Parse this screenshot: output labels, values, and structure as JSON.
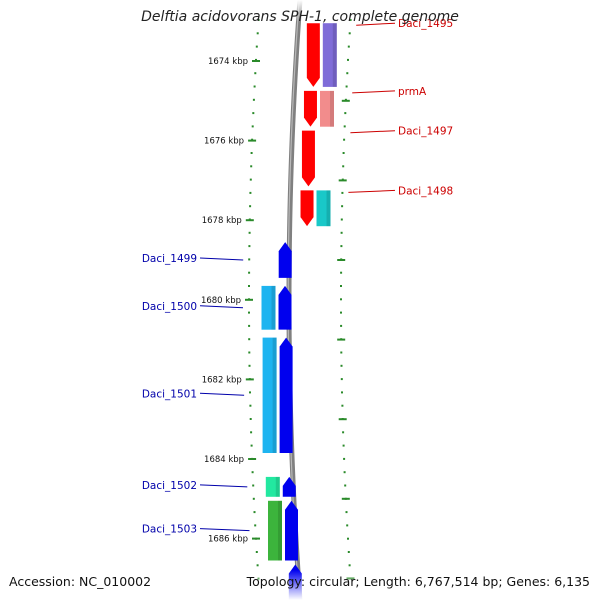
{
  "title": "Delftia acidovorans SPH-1, complete genome",
  "footer": {
    "accession": "Accession: NC_010002",
    "summary": "Topology: circular; Length: 6,767,514 bp; Genes: 6,135"
  },
  "scale": {
    "unit_label": "kbp",
    "ticks_kbp": [
      1674,
      1676,
      1678,
      1680,
      1682,
      1684,
      1686
    ]
  },
  "colors": {
    "backbone": "#808080",
    "tick": "#2a8a2a",
    "forward_strand": "#ff0000",
    "forward_label": "#cc0000",
    "reverse_strand": "#0000ee",
    "reverse_label": "#0000aa"
  },
  "genes": [
    {
      "name": "Daci_1495",
      "strand": "+",
      "start_kbp": 1673.0,
      "end_kbp": 1674.7,
      "cog_color": "#7f6cd8"
    },
    {
      "name": "prmA",
      "strand": "+",
      "start_kbp": 1674.7,
      "end_kbp": 1675.7,
      "cog_color": "#f28c8c"
    },
    {
      "name": "Daci_1497",
      "strand": "+",
      "start_kbp": 1675.7,
      "end_kbp": 1677.2,
      "cog_color": null
    },
    {
      "name": "Daci_1498",
      "strand": "+",
      "start_kbp": 1677.2,
      "end_kbp": 1678.2,
      "cog_color": "#19c8c8"
    },
    {
      "name": "Daci_1499",
      "strand": "-",
      "start_kbp": 1678.5,
      "end_kbp": 1679.5,
      "cog_color": null
    },
    {
      "name": "Daci_1500",
      "strand": "-",
      "start_kbp": 1679.6,
      "end_kbp": 1680.8,
      "cog_color": "#1eb4f0"
    },
    {
      "name": "Daci_1501",
      "strand": "-",
      "start_kbp": 1680.9,
      "end_kbp": 1683.9,
      "cog_color": "#1eb4f0"
    },
    {
      "name": "Daci_1502",
      "strand": "-",
      "start_kbp": 1684.4,
      "end_kbp": 1685.0,
      "cog_color": "#22e8a0"
    },
    {
      "name": "Daci_1503",
      "strand": "-",
      "start_kbp": 1685.0,
      "end_kbp": 1686.6,
      "cog_color": "#3cb43c"
    },
    {
      "name": "",
      "strand": "-",
      "start_kbp": 1686.6,
      "end_kbp": 1688.0,
      "cog_color": null
    }
  ]
}
